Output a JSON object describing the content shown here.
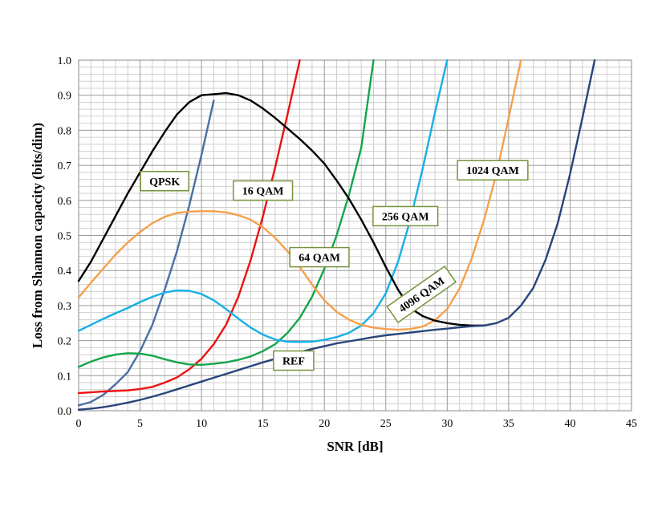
{
  "chart_data": {
    "type": "line",
    "xlabel": "SNR [dB]",
    "ylabel": "Loss from Shannon capacity (bits/dim)",
    "xlim": [
      0,
      45
    ],
    "ylim": [
      0,
      1.0
    ],
    "x_ticks": [
      "0",
      "5",
      "10",
      "15",
      "20",
      "25",
      "30",
      "35",
      "40",
      "45"
    ],
    "y_ticks": [
      "0.0",
      "0.1",
      "0.2",
      "0.3",
      "0.4",
      "0.5",
      "0.6",
      "0.7",
      "0.8",
      "0.9",
      "1.0"
    ],
    "grid": true,
    "series": [
      {
        "name": "QPSK",
        "color": "#4a6fa5",
        "points": [
          [
            0,
            0.015
          ],
          [
            1,
            0.025
          ],
          [
            2,
            0.045
          ],
          [
            3,
            0.075
          ],
          [
            4,
            0.11
          ],
          [
            5,
            0.17
          ],
          [
            6,
            0.245
          ],
          [
            7,
            0.345
          ],
          [
            8,
            0.455
          ],
          [
            9,
            0.585
          ],
          [
            10,
            0.73
          ],
          [
            11,
            0.885
          ]
        ]
      },
      {
        "name": "16 QAM",
        "color": "#ee1111",
        "points": [
          [
            0,
            0.05
          ],
          [
            2,
            0.055
          ],
          [
            4,
            0.058
          ],
          [
            5,
            0.062
          ],
          [
            6,
            0.068
          ],
          [
            7,
            0.08
          ],
          [
            8,
            0.095
          ],
          [
            9,
            0.118
          ],
          [
            10,
            0.148
          ],
          [
            11,
            0.19
          ],
          [
            12,
            0.245
          ],
          [
            13,
            0.325
          ],
          [
            14,
            0.43
          ],
          [
            15,
            0.555
          ],
          [
            16,
            0.695
          ],
          [
            17,
            0.845
          ],
          [
            18,
            1.0
          ]
        ]
      },
      {
        "name": "64 QAM",
        "color": "#13a64a",
        "points": [
          [
            0,
            0.125
          ],
          [
            1,
            0.14
          ],
          [
            2,
            0.152
          ],
          [
            3,
            0.16
          ],
          [
            4,
            0.164
          ],
          [
            5,
            0.163
          ],
          [
            6,
            0.157
          ],
          [
            7,
            0.147
          ],
          [
            8,
            0.138
          ],
          [
            9,
            0.132
          ],
          [
            10,
            0.131
          ],
          [
            11,
            0.134
          ],
          [
            12,
            0.138
          ],
          [
            13,
            0.145
          ],
          [
            14,
            0.155
          ],
          [
            15,
            0.17
          ],
          [
            16,
            0.19
          ],
          [
            17,
            0.222
          ],
          [
            18,
            0.265
          ],
          [
            19,
            0.325
          ],
          [
            20,
            0.405
          ],
          [
            21,
            0.5
          ],
          [
            22,
            0.615
          ],
          [
            23,
            0.75
          ],
          [
            24,
            1.0
          ]
        ]
      },
      {
        "name": "256 QAM",
        "color": "#16b0e6",
        "points": [
          [
            0,
            0.228
          ],
          [
            1,
            0.245
          ],
          [
            2,
            0.262
          ],
          [
            3,
            0.278
          ],
          [
            4,
            0.293
          ],
          [
            5,
            0.31
          ],
          [
            6,
            0.325
          ],
          [
            7,
            0.337
          ],
          [
            8,
            0.343
          ],
          [
            9,
            0.342
          ],
          [
            10,
            0.333
          ],
          [
            11,
            0.315
          ],
          [
            12,
            0.29
          ],
          [
            13,
            0.263
          ],
          [
            14,
            0.237
          ],
          [
            15,
            0.217
          ],
          [
            16,
            0.203
          ],
          [
            17,
            0.197
          ],
          [
            18,
            0.196
          ],
          [
            19,
            0.197
          ],
          [
            20,
            0.202
          ],
          [
            21,
            0.21
          ],
          [
            22,
            0.222
          ],
          [
            23,
            0.243
          ],
          [
            24,
            0.278
          ],
          [
            25,
            0.335
          ],
          [
            26,
            0.425
          ],
          [
            27,
            0.545
          ],
          [
            28,
            0.69
          ],
          [
            29,
            0.85
          ],
          [
            30,
            1.0
          ]
        ]
      },
      {
        "name": "1024 QAM",
        "color": "#f5a04b",
        "points": [
          [
            0,
            0.323
          ],
          [
            1,
            0.365
          ],
          [
            2,
            0.405
          ],
          [
            3,
            0.445
          ],
          [
            4,
            0.48
          ],
          [
            5,
            0.51
          ],
          [
            6,
            0.535
          ],
          [
            7,
            0.553
          ],
          [
            8,
            0.564
          ],
          [
            9,
            0.568
          ],
          [
            10,
            0.569
          ],
          [
            11,
            0.569
          ],
          [
            12,
            0.566
          ],
          [
            13,
            0.558
          ],
          [
            14,
            0.545
          ],
          [
            15,
            0.523
          ],
          [
            16,
            0.493
          ],
          [
            17,
            0.455
          ],
          [
            18,
            0.41
          ],
          [
            19,
            0.36
          ],
          [
            20,
            0.315
          ],
          [
            21,
            0.282
          ],
          [
            22,
            0.26
          ],
          [
            23,
            0.245
          ],
          [
            24,
            0.237
          ],
          [
            25,
            0.233
          ],
          [
            26,
            0.231
          ],
          [
            27,
            0.233
          ],
          [
            28,
            0.24
          ],
          [
            29,
            0.258
          ],
          [
            30,
            0.29
          ],
          [
            31,
            0.348
          ],
          [
            32,
            0.435
          ],
          [
            33,
            0.545
          ],
          [
            34,
            0.675
          ],
          [
            35,
            0.835
          ],
          [
            36,
            1.0
          ]
        ]
      },
      {
        "name": "4096 QAM",
        "color": "#000000",
        "points": [
          [
            0,
            0.37
          ],
          [
            1,
            0.425
          ],
          [
            2,
            0.49
          ],
          [
            3,
            0.555
          ],
          [
            4,
            0.62
          ],
          [
            5,
            0.68
          ],
          [
            6,
            0.74
          ],
          [
            7,
            0.795
          ],
          [
            8,
            0.845
          ],
          [
            9,
            0.88
          ],
          [
            10,
            0.9
          ],
          [
            11,
            0.903
          ],
          [
            12,
            0.906
          ],
          [
            13,
            0.9
          ],
          [
            14,
            0.885
          ],
          [
            15,
            0.862
          ],
          [
            16,
            0.835
          ],
          [
            17,
            0.805
          ],
          [
            18,
            0.775
          ],
          [
            19,
            0.742
          ],
          [
            20,
            0.705
          ],
          [
            21,
            0.657
          ],
          [
            22,
            0.605
          ],
          [
            23,
            0.545
          ],
          [
            24,
            0.48
          ],
          [
            25,
            0.41
          ],
          [
            26,
            0.345
          ],
          [
            27,
            0.293
          ],
          [
            28,
            0.27
          ],
          [
            29,
            0.257
          ],
          [
            30,
            0.25
          ],
          [
            31,
            0.245
          ],
          [
            32,
            0.243
          ],
          [
            33,
            0.243
          ]
        ]
      },
      {
        "name": "REF",
        "color": "#27457a",
        "points": [
          [
            0,
            0.003
          ],
          [
            1,
            0.006
          ],
          [
            2,
            0.01
          ],
          [
            3,
            0.016
          ],
          [
            4,
            0.023
          ],
          [
            5,
            0.031
          ],
          [
            6,
            0.04
          ],
          [
            7,
            0.05
          ],
          [
            8,
            0.061
          ],
          [
            9,
            0.072
          ],
          [
            10,
            0.083
          ],
          [
            11,
            0.094
          ],
          [
            12,
            0.105
          ],
          [
            13,
            0.116
          ],
          [
            14,
            0.127
          ],
          [
            15,
            0.138
          ],
          [
            16,
            0.148
          ],
          [
            17,
            0.158
          ],
          [
            18,
            0.167
          ],
          [
            19,
            0.176
          ],
          [
            20,
            0.184
          ],
          [
            21,
            0.192
          ],
          [
            22,
            0.198
          ],
          [
            23,
            0.204
          ],
          [
            24,
            0.21
          ],
          [
            25,
            0.215
          ],
          [
            26,
            0.219
          ],
          [
            27,
            0.223
          ],
          [
            28,
            0.227
          ],
          [
            29,
            0.231
          ],
          [
            30,
            0.234
          ],
          [
            31,
            0.238
          ],
          [
            32,
            0.241
          ],
          [
            33,
            0.243
          ],
          [
            34,
            0.25
          ],
          [
            35,
            0.265
          ],
          [
            36,
            0.3
          ],
          [
            37,
            0.35
          ],
          [
            38,
            0.43
          ],
          [
            39,
            0.535
          ],
          [
            40,
            0.675
          ],
          [
            41,
            0.835
          ],
          [
            42,
            1.0
          ]
        ]
      }
    ],
    "labels": [
      {
        "text": "QPSK",
        "x": 7.0,
        "y": 0.655,
        "rotate": 0
      },
      {
        "text": "16 QAM",
        "x": 15.0,
        "y": 0.628,
        "rotate": 0
      },
      {
        "text": "64 QAM",
        "x": 19.6,
        "y": 0.438,
        "rotate": 0
      },
      {
        "text": "256 QAM",
        "x": 26.6,
        "y": 0.555,
        "rotate": 0
      },
      {
        "text": "1024 QAM",
        "x": 33.7,
        "y": 0.686,
        "rotate": 0
      },
      {
        "text": "4096 QAM",
        "x": 27.9,
        "y": 0.332,
        "rotate": -35
      },
      {
        "text": "REF",
        "x": 17.5,
        "y": 0.143,
        "rotate": 0
      }
    ]
  }
}
